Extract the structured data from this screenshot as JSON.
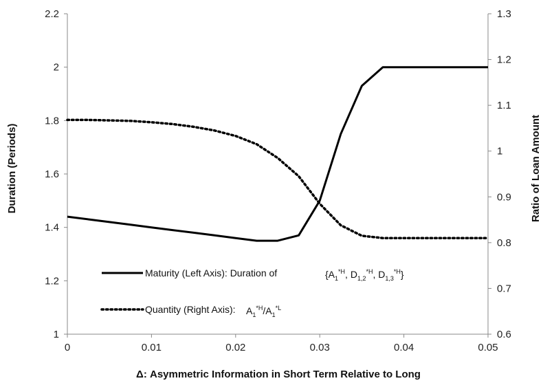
{
  "chart_data": {
    "type": "line",
    "xlabel": "Δ: Asymmetric Information in Short Term Relative to Long",
    "ylabel_left": "Duration (Periods)",
    "ylabel_right": "Ratio of Loan Amount",
    "xlim": [
      0,
      0.05
    ],
    "ylim_left": [
      1,
      2.2
    ],
    "ylim_right": [
      0.6,
      1.3
    ],
    "x_ticks": [
      "0",
      "0.01",
      "0.02",
      "0.03",
      "0.04",
      "0.05"
    ],
    "x_tick_values": [
      0,
      0.01,
      0.02,
      0.03,
      0.04,
      0.05
    ],
    "y_left_ticks": [
      "1",
      "1.2",
      "1.4",
      "1.6",
      "1.8",
      "2",
      "2.2"
    ],
    "y_left_tick_values": [
      1,
      1.2,
      1.4,
      1.6,
      1.8,
      2,
      2.2
    ],
    "y_right_ticks": [
      "0.6",
      "0.7",
      "0.8",
      "0.9",
      "1",
      "1.1",
      "1.2",
      "1.3"
    ],
    "y_right_tick_values": [
      0.6,
      0.7,
      0.8,
      0.9,
      1,
      1.1,
      1.2,
      1.3
    ],
    "grid": false,
    "legend_position": "bottom-left",
    "series": [
      {
        "name": "Maturity (Left Axis): Duration of",
        "axis": "left",
        "style": "solid",
        "color": "#000000",
        "x": [
          0,
          0.0025,
          0.005,
          0.0075,
          0.01,
          0.0125,
          0.015,
          0.0175,
          0.02,
          0.0225,
          0.025,
          0.0275,
          0.03,
          0.0325,
          0.035,
          0.0375,
          0.04,
          0.0425,
          0.045,
          0.0475,
          0.05
        ],
        "values": [
          1.44,
          1.43,
          1.42,
          1.41,
          1.4,
          1.39,
          1.38,
          1.37,
          1.36,
          1.35,
          1.35,
          1.37,
          1.5,
          1.75,
          1.93,
          2.0,
          2.0,
          2.0,
          2.0,
          2.0,
          2.0
        ]
      },
      {
        "name": "Quantity (Right Axis):",
        "axis": "right",
        "style": "dotted",
        "color": "#000000",
        "x": [
          0,
          0.0025,
          0.005,
          0.0075,
          0.01,
          0.0125,
          0.015,
          0.0175,
          0.02,
          0.0225,
          0.025,
          0.0275,
          0.03,
          0.0325,
          0.035,
          0.0375,
          0.04,
          0.0425,
          0.045,
          0.0475,
          0.05
        ],
        "values": [
          1.068,
          1.068,
          1.067,
          1.066,
          1.063,
          1.059,
          1.053,
          1.045,
          1.033,
          1.015,
          0.985,
          0.945,
          0.885,
          0.838,
          0.815,
          0.81,
          0.81,
          0.81,
          0.81,
          0.81,
          0.81
        ]
      }
    ],
    "legend": [
      {
        "label": "Maturity (Left Axis): Duration of",
        "formula": {
          "open": "{A",
          "sub1": "1",
          "sup1": "*H",
          "sep1": ", D",
          "sub2": "1,2",
          "sup2": "*H",
          "sep2": ", D",
          "sub3": "1,3",
          "sup3": "*H",
          "close": "}"
        }
      },
      {
        "label": "Quantity (Right Axis):",
        "formula": {
          "a": "A",
          "sub1": "1",
          "sup1": "*H",
          "slash": "/A",
          "sub2": "1",
          "sup2": "*L"
        }
      }
    ]
  }
}
